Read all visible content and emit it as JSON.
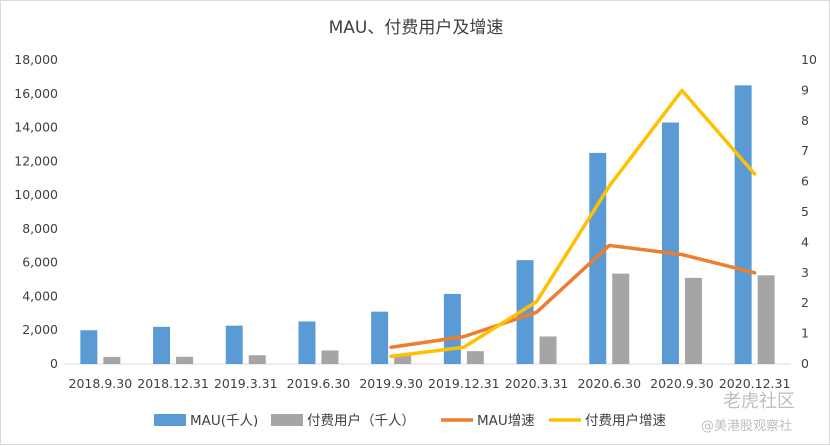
{
  "chart_data": {
    "type": "bar",
    "title": "MAU、付费用户及增速",
    "categories": [
      "2018.9.30",
      "2018.12.31",
      "2019.3.31",
      "2019.6.30",
      "2019.9.30",
      "2019.12.31",
      "2020.3.31",
      "2020.6.30",
      "2020.9.30",
      "2020.12.31"
    ],
    "left_axis": {
      "ylim": [
        0,
        18000
      ],
      "ticks": [
        "0",
        "2,000",
        "4,000",
        "6,000",
        "8,000",
        "10,000",
        "12,000",
        "14,000",
        "16,000",
        "18,000"
      ],
      "tick_values": [
        0,
        2000,
        4000,
        6000,
        8000,
        10000,
        12000,
        14000,
        16000,
        18000
      ]
    },
    "right_axis": {
      "ylim": [
        0,
        10
      ],
      "ticks": [
        "0",
        "1",
        "2",
        "3",
        "4",
        "5",
        "6",
        "7",
        "8",
        "9",
        "10"
      ],
      "tick_values": [
        0,
        1,
        2,
        3,
        4,
        5,
        6,
        7,
        8,
        9,
        10
      ]
    },
    "bar_series": [
      {
        "name": "MAU(千人)",
        "color": "#5b9bd5",
        "values": [
          2000,
          2200,
          2270,
          2520,
          3100,
          4150,
          6150,
          12500,
          14300,
          16500
        ]
      },
      {
        "name": "付费用户（千人）",
        "color": "#a5a5a5",
        "values": [
          420,
          430,
          520,
          800,
          500,
          760,
          1630,
          5350,
          5100,
          5250
        ]
      }
    ],
    "line_series": [
      {
        "name": "MAU增速",
        "color": "#ed7d31",
        "values": [
          null,
          null,
          null,
          null,
          0.55,
          0.9,
          1.7,
          3.9,
          3.6,
          3.0
        ]
      },
      {
        "name": "付费用户增速",
        "color": "#ffc000",
        "values": [
          null,
          null,
          null,
          null,
          0.25,
          0.55,
          2.05,
          5.85,
          9.0,
          6.25
        ]
      }
    ],
    "legend": {
      "position": "bottom"
    },
    "grid": false
  },
  "watermark": {
    "brand": "老虎社区",
    "source": "@美港股观察社"
  }
}
